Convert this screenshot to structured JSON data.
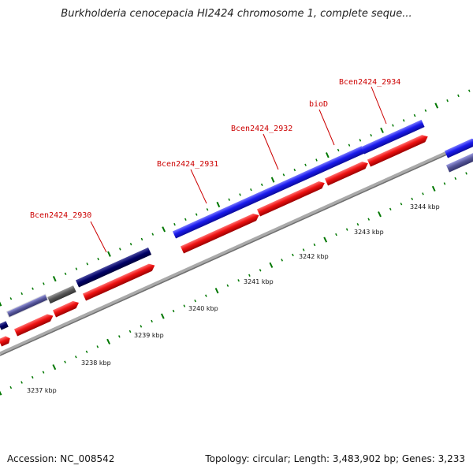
{
  "title": "Burkholderia cenocepacia HI2424 chromosome 1, complete seque...",
  "footer": {
    "accession": "Accession: NC_008542",
    "summary": "Topology: circular; Length: 3,483,902 bp; Genes: 3,233"
  },
  "colors": {
    "forward_gene": "#1a1aee",
    "dark_gene": "#000066",
    "reverse_gene": "#ee1111",
    "gray_gene": "#555555",
    "backbone": "#888888",
    "tick": "#007700",
    "label": "#cc0000"
  },
  "scale_labels": [
    "3237 kbp",
    "3238 kbp",
    "3239 kbp",
    "3240 kbp",
    "3241 kbp",
    "3242 kbp",
    "3243 kbp",
    "3244 kbp"
  ],
  "gene_labels": [
    "Bcen2424_2930",
    "Bcen2424_2931",
    "Bcen2424_2932",
    "bioD",
    "Bcen2424_2934"
  ]
}
